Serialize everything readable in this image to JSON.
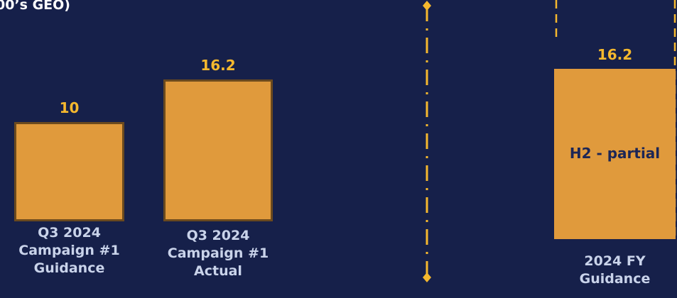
{
  "chart_data": {
    "type": "bar",
    "title": "00’s GEO)",
    "categories": [
      "Q3 2024\nCampaign #1\nGuidance",
      "Q3 2024\nCampaign #1\nActual",
      "2024 FY\nGuidance"
    ],
    "values": [
      10,
      16.2,
      16.2
    ],
    "color": "#e09a3c",
    "annotations": [
      null,
      null,
      "H2 - partial"
    ]
  }
}
